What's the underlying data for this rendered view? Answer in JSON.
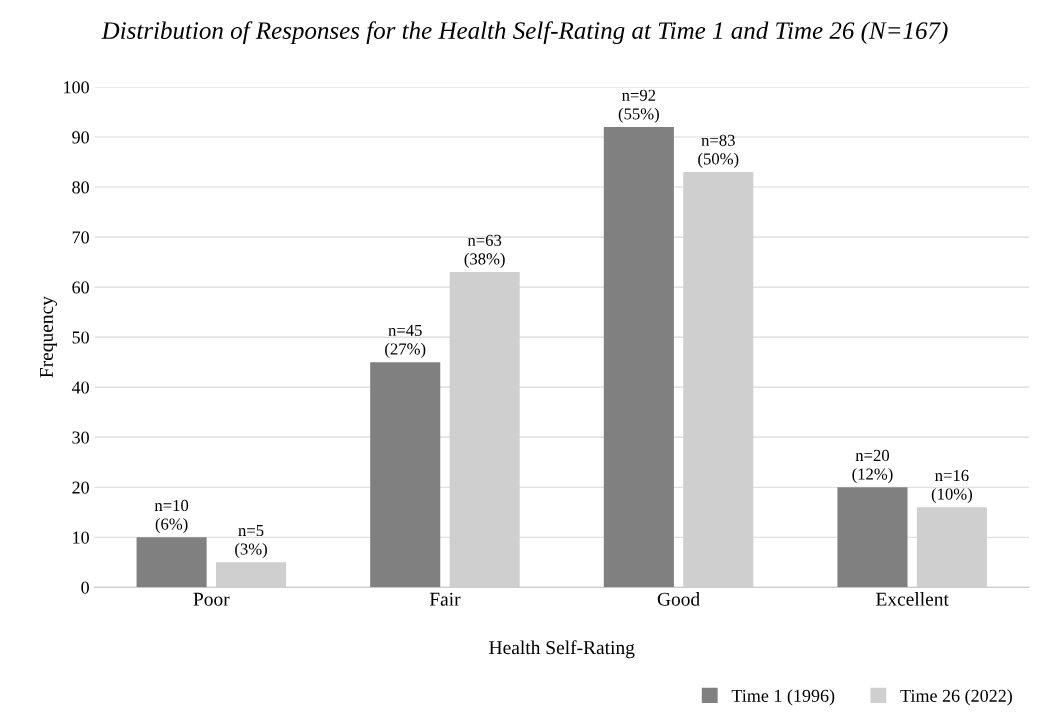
{
  "chart_data": {
    "type": "bar",
    "title": "Distribution of Responses for the Health Self-Rating at Time 1 and Time 26 (N=167)",
    "xlabel": "Health Self-Rating",
    "ylabel": "Frequency",
    "categories": [
      "Poor",
      "Fair",
      "Good",
      "Excellent"
    ],
    "series": [
      {
        "name": "Time 1 (1996)",
        "color": "#808080",
        "values": [
          10,
          45,
          92,
          20
        ],
        "value_labels": [
          "n=10\n(6%)",
          "n=45\n(27%)",
          "n=92\n(55%)",
          "n=20\n(12%)"
        ]
      },
      {
        "name": "Time 26 (2022)",
        "color": "#cfcfcf",
        "values": [
          5,
          63,
          83,
          16
        ],
        "value_labels": [
          "n=5\n(3%)",
          "n=63\n(38%)",
          "n=83\n(50%)",
          "n=16\n(10%)"
        ]
      }
    ],
    "ylim": [
      0,
      100
    ],
    "yticks": [
      0,
      10,
      20,
      30,
      40,
      50,
      60,
      70,
      80,
      90,
      100
    ],
    "grid": "y",
    "legend": "bottom right"
  }
}
